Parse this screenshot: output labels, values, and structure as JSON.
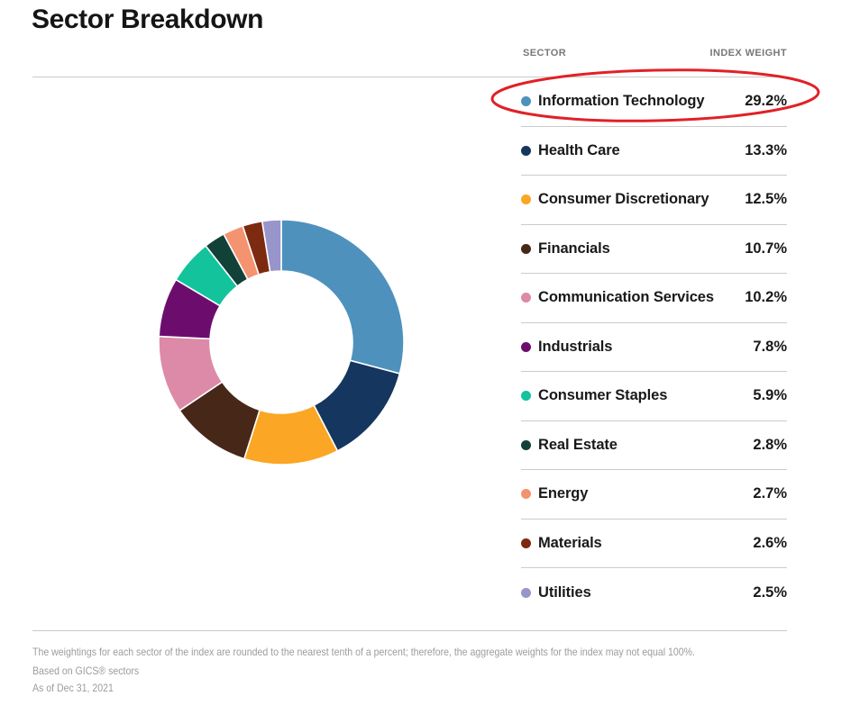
{
  "page": {
    "title": "Sector Breakdown"
  },
  "table": {
    "headers": {
      "sector": "SECTOR",
      "weight": "INDEX WEIGHT"
    }
  },
  "chart_data": {
    "type": "pie",
    "donut": true,
    "title": "Sector Breakdown",
    "legend_position": "right-table",
    "direction": "clockwise",
    "start_angle_deg": 0,
    "inner_radius_ratio": 0.58,
    "categories": [
      "Information Technology",
      "Health Care",
      "Consumer Discretionary",
      "Financials",
      "Communication Services",
      "Industrials",
      "Consumer Staples",
      "Real Estate",
      "Energy",
      "Materials",
      "Utilities"
    ],
    "values": [
      29.2,
      13.3,
      12.5,
      10.7,
      10.2,
      7.8,
      5.9,
      2.8,
      2.7,
      2.6,
      2.5
    ],
    "labels": [
      "29.2%",
      "13.3%",
      "12.5%",
      "10.7%",
      "10.2%",
      "7.8%",
      "5.9%",
      "2.8%",
      "2.7%",
      "2.6%",
      "2.5%"
    ],
    "colors": [
      "#4e91bd",
      "#14365f",
      "#fba624",
      "#472718",
      "#dc8aa7",
      "#6c0d6e",
      "#12c39c",
      "#124138",
      "#f49370",
      "#7c2a10",
      "#9795ca"
    ]
  },
  "annotation": {
    "type": "hand-drawn-ellipse",
    "color": "#e02127",
    "highlights": "Information Technology row"
  },
  "footer": {
    "note1": "The weightings for each sector of the index are rounded to the nearest tenth of a percent; therefore, the aggregate weights for the index may not equal 100%.",
    "note2": "Based on GICS® sectors",
    "note3": "As of Dec 31, 2021"
  }
}
